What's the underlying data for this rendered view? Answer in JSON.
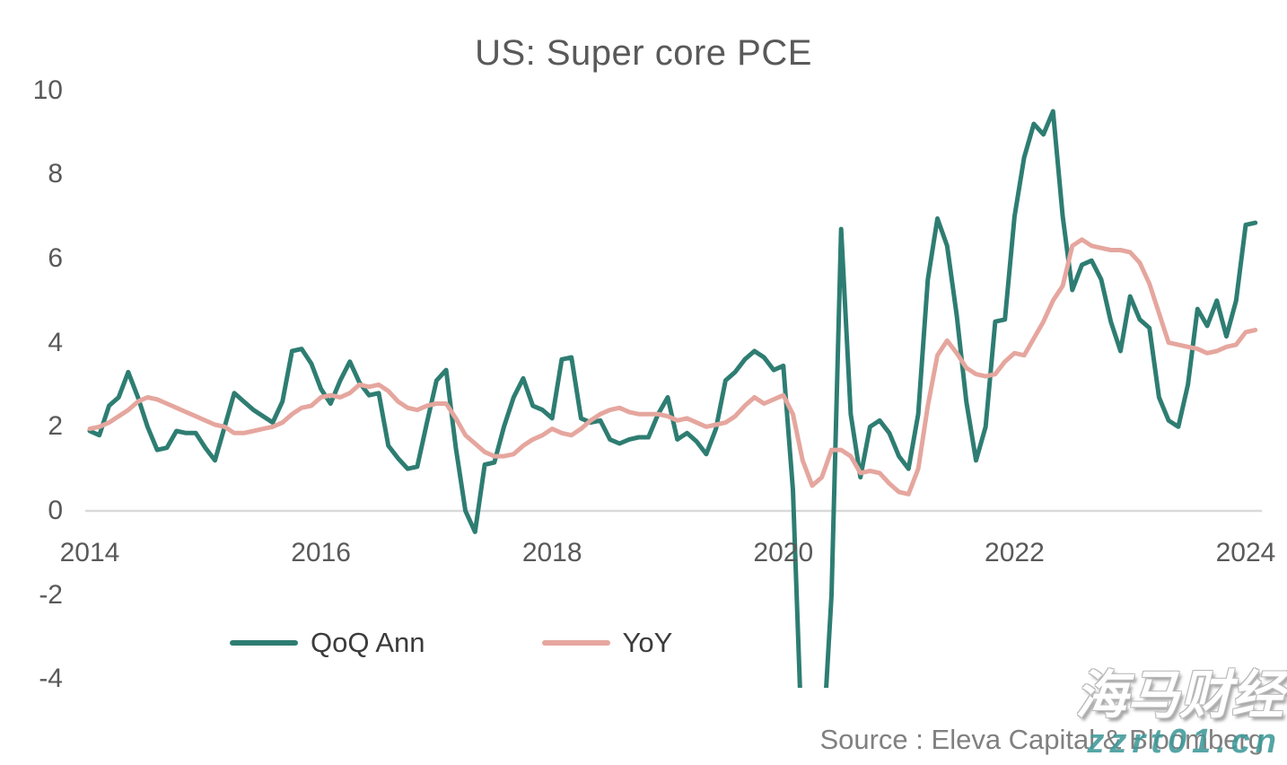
{
  "title": "US: Super core PCE",
  "source": "Source : Eleva Capital & Bloomberg",
  "watermark": {
    "line1": "海马财经",
    "line2": "zzrt01.cn"
  },
  "legend": [
    {
      "label": "QoQ Ann",
      "color": "#2E7D72"
    },
    {
      "label": "YoY",
      "color": "#E5A69E"
    }
  ],
  "colors": {
    "qoq": "#2E7D72",
    "yoy": "#E5A69E",
    "zero_line": "#D9D9D9",
    "axis_text": "#595959"
  },
  "chart_data": {
    "type": "line",
    "title": "US: Super core PCE",
    "xlabel": "",
    "ylabel": "",
    "grid": "zero-line-only",
    "legend_position": "bottom",
    "xticks": [
      2014,
      2016,
      2018,
      2020,
      2022,
      2024
    ],
    "yticks": [
      10,
      8,
      6,
      4,
      2,
      0,
      -2,
      -4
    ],
    "ylim": [
      -4.2,
      10
    ],
    "xlim": [
      2014,
      2024.2
    ],
    "note": "Monthly series, decimal years. QoQ Ann 2020 COVID dip plunges below axis minimum and is clipped at about -4.2 in the chart.",
    "x": [
      2014.0,
      2014.083,
      2014.167,
      2014.25,
      2014.333,
      2014.417,
      2014.5,
      2014.583,
      2014.667,
      2014.75,
      2014.833,
      2014.917,
      2015.0,
      2015.083,
      2015.167,
      2015.25,
      2015.333,
      2015.417,
      2015.5,
      2015.583,
      2015.667,
      2015.75,
      2015.833,
      2015.917,
      2016.0,
      2016.083,
      2016.167,
      2016.25,
      2016.333,
      2016.417,
      2016.5,
      2016.583,
      2016.667,
      2016.75,
      2016.833,
      2016.917,
      2017.0,
      2017.083,
      2017.167,
      2017.25,
      2017.333,
      2017.417,
      2017.5,
      2017.583,
      2017.667,
      2017.75,
      2017.833,
      2017.917,
      2018.0,
      2018.083,
      2018.167,
      2018.25,
      2018.333,
      2018.417,
      2018.5,
      2018.583,
      2018.667,
      2018.75,
      2018.833,
      2018.917,
      2019.0,
      2019.083,
      2019.167,
      2019.25,
      2019.333,
      2019.417,
      2019.5,
      2019.583,
      2019.667,
      2019.75,
      2019.833,
      2019.917,
      2020.0,
      2020.083,
      2020.167,
      2020.25,
      2020.333,
      2020.417,
      2020.5,
      2020.583,
      2020.667,
      2020.75,
      2020.833,
      2020.917,
      2021.0,
      2021.083,
      2021.167,
      2021.25,
      2021.333,
      2021.417,
      2021.5,
      2021.583,
      2021.667,
      2021.75,
      2021.833,
      2021.917,
      2022.0,
      2022.083,
      2022.167,
      2022.25,
      2022.333,
      2022.417,
      2022.5,
      2022.583,
      2022.667,
      2022.75,
      2022.833,
      2022.917,
      2023.0,
      2023.083,
      2023.167,
      2023.25,
      2023.333,
      2023.417,
      2023.5,
      2023.583,
      2023.667,
      2023.75,
      2023.833,
      2023.917,
      2024.0,
      2024.083
    ],
    "series": [
      {
        "name": "QoQ Ann",
        "color": "#2E7D72",
        "values": [
          1.9,
          1.8,
          2.5,
          2.7,
          3.3,
          2.7,
          2.0,
          1.45,
          1.5,
          1.9,
          1.85,
          1.85,
          1.5,
          1.2,
          2.0,
          2.8,
          2.6,
          2.4,
          2.25,
          2.1,
          2.6,
          3.8,
          3.85,
          3.5,
          2.9,
          2.55,
          3.1,
          3.55,
          3.05,
          2.75,
          2.8,
          1.55,
          1.25,
          1.0,
          1.05,
          2.1,
          3.1,
          3.35,
          1.5,
          0.0,
          -0.5,
          1.1,
          1.15,
          2.0,
          2.7,
          3.15,
          2.5,
          2.4,
          2.2,
          3.6,
          3.65,
          2.2,
          2.1,
          2.15,
          1.7,
          1.6,
          1.7,
          1.75,
          1.75,
          2.3,
          2.7,
          1.7,
          1.85,
          1.65,
          1.35,
          1.95,
          3.1,
          3.3,
          3.6,
          3.8,
          3.65,
          3.35,
          3.45,
          0.5,
          -6.0,
          -6.0,
          -6.0,
          -2.0,
          6.7,
          2.3,
          0.8,
          2.0,
          2.15,
          1.85,
          1.3,
          1.0,
          2.3,
          5.5,
          6.95,
          6.3,
          4.65,
          2.6,
          1.2,
          2.0,
          4.5,
          4.55,
          7.0,
          8.4,
          9.2,
          8.95,
          9.5,
          7.0,
          5.25,
          5.85,
          5.95,
          5.5,
          4.5,
          3.8,
          5.1,
          4.55,
          4.35,
          2.7,
          2.15,
          2.0,
          3.0,
          4.8,
          4.4,
          5.0,
          4.15,
          5.0,
          6.8,
          6.85
        ]
      },
      {
        "name": "YoY",
        "color": "#E5A69E",
        "values": [
          1.95,
          2.0,
          2.1,
          2.25,
          2.4,
          2.6,
          2.7,
          2.65,
          2.55,
          2.45,
          2.35,
          2.25,
          2.15,
          2.05,
          2.0,
          1.85,
          1.85,
          1.9,
          1.95,
          2.0,
          2.1,
          2.3,
          2.45,
          2.5,
          2.7,
          2.75,
          2.7,
          2.8,
          3.0,
          2.95,
          3.0,
          2.85,
          2.6,
          2.45,
          2.4,
          2.5,
          2.55,
          2.55,
          2.2,
          1.8,
          1.6,
          1.4,
          1.3,
          1.3,
          1.35,
          1.55,
          1.7,
          1.8,
          1.95,
          1.85,
          1.8,
          1.95,
          2.15,
          2.3,
          2.4,
          2.45,
          2.35,
          2.3,
          2.3,
          2.3,
          2.25,
          2.15,
          2.2,
          2.1,
          2.0,
          2.05,
          2.1,
          2.25,
          2.5,
          2.7,
          2.55,
          2.65,
          2.75,
          2.3,
          1.2,
          0.6,
          0.8,
          1.45,
          1.45,
          1.3,
          0.9,
          0.95,
          0.9,
          0.65,
          0.45,
          0.4,
          1.0,
          2.5,
          3.7,
          4.05,
          3.75,
          3.4,
          3.25,
          3.2,
          3.25,
          3.55,
          3.75,
          3.7,
          4.1,
          4.5,
          5.0,
          5.35,
          6.3,
          6.45,
          6.3,
          6.25,
          6.2,
          6.2,
          6.15,
          5.9,
          5.4,
          4.7,
          4.0,
          3.95,
          3.9,
          3.85,
          3.75,
          3.8,
          3.9,
          3.95,
          4.25,
          4.3
        ]
      }
    ]
  }
}
